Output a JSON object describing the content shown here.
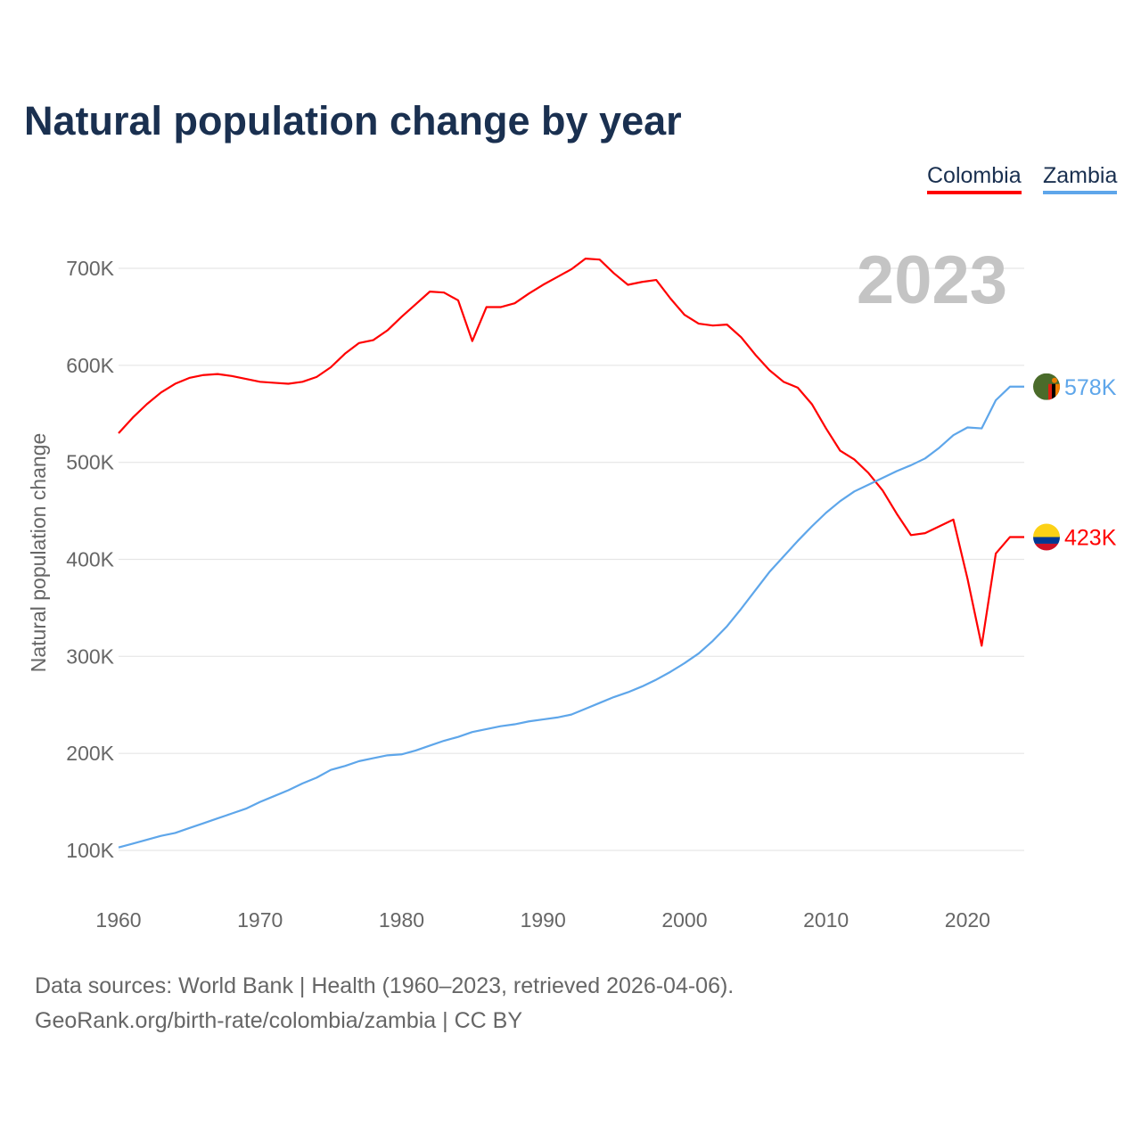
{
  "title": "Natural population change by year",
  "legend": [
    {
      "label": "Colombia",
      "color": "#ff0000"
    },
    {
      "label": "Zambia",
      "color": "#5ea6ea"
    }
  ],
  "year_label": "2023",
  "footer": {
    "line1": "Data sources: World Bank | Health (1960–2023, retrieved 2026-04-06).",
    "line2": "GeoRank.org/birth-rate/colombia/zambia | CC BY"
  },
  "chart_data": {
    "type": "line",
    "title": "Natural population change by year",
    "xlabel": "",
    "ylabel": "Natural population change",
    "xlim": [
      1960,
      2023
    ],
    "ylim": [
      100000,
      700000
    ],
    "xticks": [
      1960,
      1970,
      1980,
      1990,
      2000,
      2010,
      2020
    ],
    "xtick_labels": [
      "1960",
      "1970",
      "1980",
      "1990",
      "2000",
      "2010",
      "2020"
    ],
    "yticks": [
      100000,
      200000,
      300000,
      400000,
      500000,
      600000,
      700000
    ],
    "ytick_labels": [
      "100K",
      "200K",
      "300K",
      "400K",
      "500K",
      "600K",
      "700K"
    ],
    "grid": true,
    "legend_position": "top-right",
    "x": [
      1960,
      1961,
      1962,
      1963,
      1964,
      1965,
      1966,
      1967,
      1968,
      1969,
      1970,
      1971,
      1972,
      1973,
      1974,
      1975,
      1976,
      1977,
      1978,
      1979,
      1980,
      1981,
      1982,
      1983,
      1984,
      1985,
      1986,
      1987,
      1988,
      1989,
      1990,
      1991,
      1992,
      1993,
      1994,
      1995,
      1996,
      1997,
      1998,
      1999,
      2000,
      2001,
      2002,
      2003,
      2004,
      2005,
      2006,
      2007,
      2008,
      2009,
      2010,
      2011,
      2012,
      2013,
      2014,
      2015,
      2016,
      2017,
      2018,
      2019,
      2020,
      2021,
      2022,
      2023
    ],
    "series": [
      {
        "name": "Colombia",
        "color": "#ff0000",
        "end_label": "423K",
        "values": [
          530000,
          546000,
          560000,
          572000,
          581000,
          587000,
          590000,
          591000,
          589000,
          586000,
          583000,
          582000,
          581000,
          583000,
          588000,
          598000,
          612000,
          623000,
          626000,
          636000,
          650000,
          663000,
          676000,
          675000,
          667000,
          625000,
          660000,
          660000,
          664000,
          674000,
          683000,
          691000,
          699000,
          710000,
          709000,
          695000,
          683000,
          686000,
          688000,
          669000,
          652000,
          643000,
          641000,
          642000,
          629000,
          611000,
          595000,
          583000,
          577000,
          560000,
          535000,
          512000,
          503000,
          489000,
          471000,
          447000,
          425000,
          427000,
          434000,
          441000,
          380000,
          311000,
          406000,
          423000
        ]
      },
      {
        "name": "Zambia",
        "color": "#5ea6ea",
        "end_label": "578K",
        "values": [
          103000,
          107000,
          111000,
          115000,
          118000,
          123000,
          128000,
          133000,
          138000,
          143000,
          150000,
          156000,
          162000,
          169000,
          175000,
          183000,
          187000,
          192000,
          195000,
          198000,
          199000,
          203000,
          208000,
          213000,
          217000,
          222000,
          225000,
          228000,
          230000,
          233000,
          235000,
          237000,
          240000,
          246000,
          252000,
          258000,
          263000,
          269000,
          276000,
          284000,
          293000,
          303000,
          316000,
          331000,
          349000,
          368000,
          387000,
          403000,
          419000,
          434000,
          448000,
          460000,
          470000,
          477000,
          484000,
          491000,
          497000,
          504000,
          515000,
          528000,
          536000,
          535000,
          564000,
          578000
        ]
      }
    ]
  }
}
